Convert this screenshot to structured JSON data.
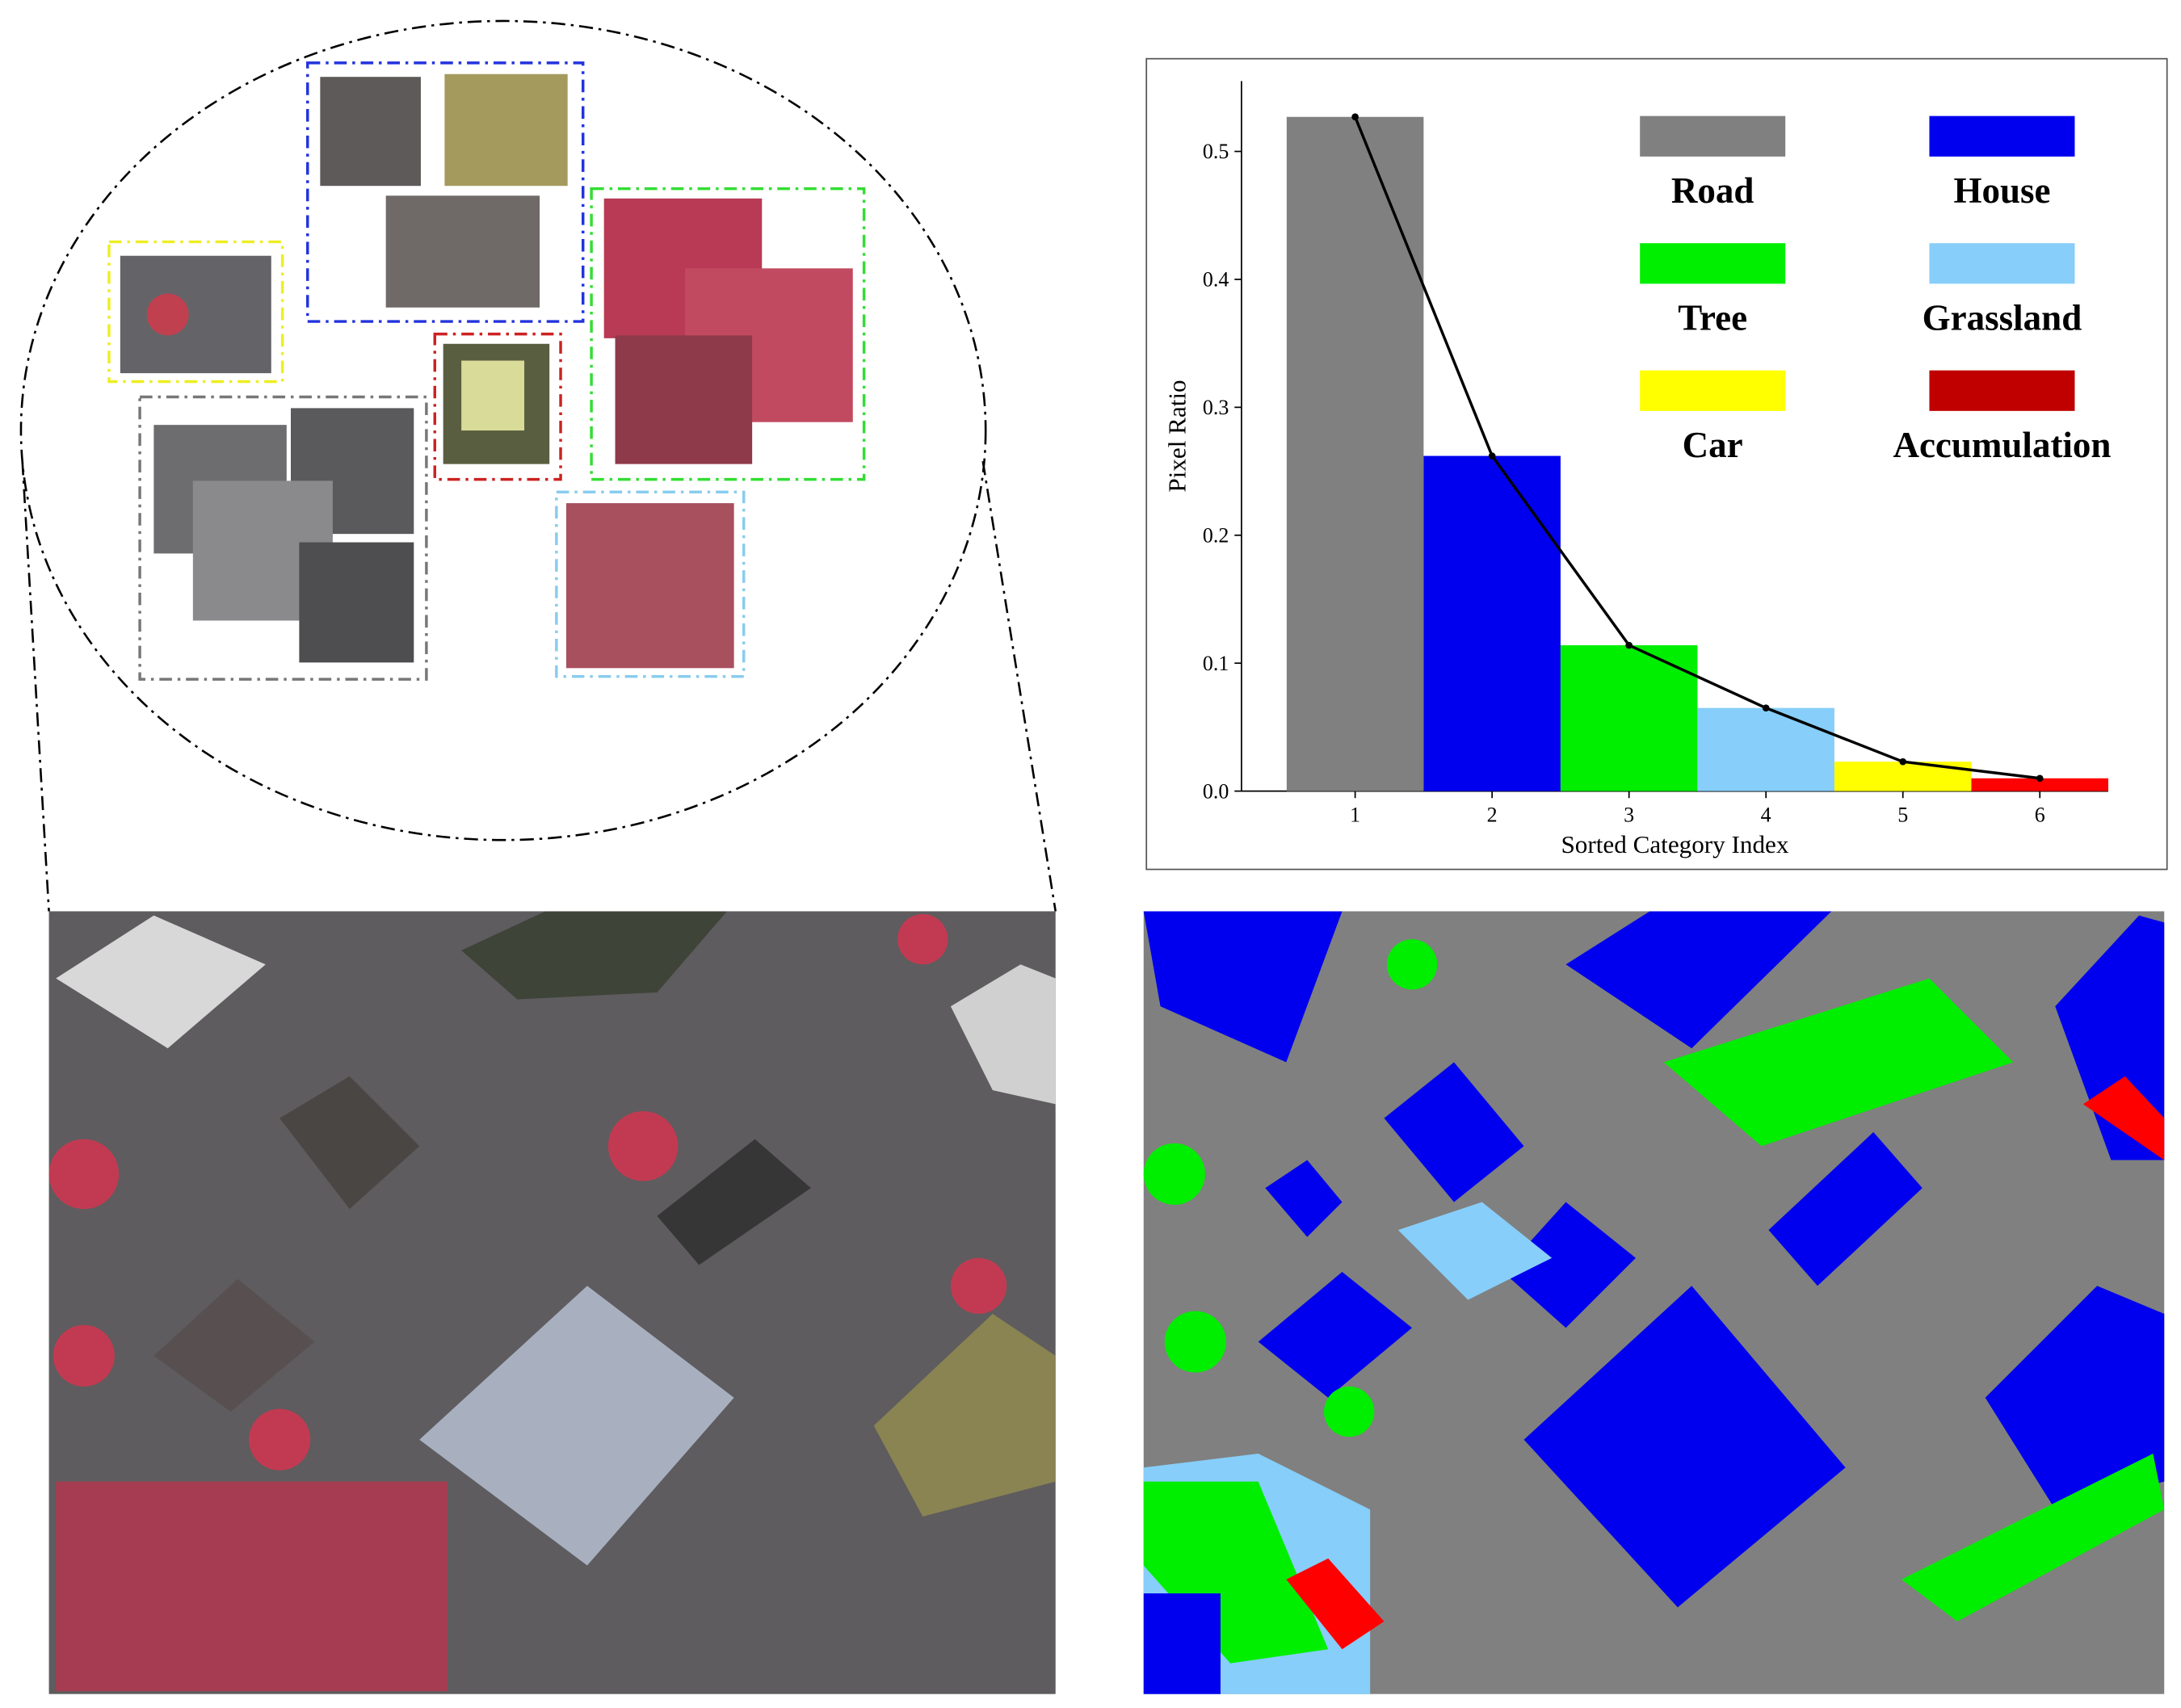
{
  "chart_data": {
    "type": "bar",
    "x": [
      1,
      2,
      3,
      4,
      5,
      6
    ],
    "values": [
      0.527,
      0.262,
      0.114,
      0.065,
      0.023,
      0.01
    ],
    "colors": [
      "#808080",
      "#0000ee",
      "#00ee00",
      "#87cefa",
      "#ffff00",
      "#ff0000"
    ],
    "legend": [
      "Road",
      "House",
      "Tree",
      "Grassland",
      "Car",
      "Accumulation"
    ],
    "legend_colors": [
      "#808080",
      "#0000ee",
      "#00ee00",
      "#87cefa",
      "#ffff00",
      "#c00000"
    ],
    "legend_loc": "upper right",
    "line_color": "#000000",
    "xlabel": "Sorted Category Index",
    "ylabel": "Pixel Ratio",
    "xlim": [
      0.17,
      6.5
    ],
    "ylim": [
      0,
      0.555
    ],
    "xticks": [
      1,
      2,
      3,
      4,
      5,
      6
    ],
    "yticks": [
      {
        "value": 0,
        "label": "0.0"
      },
      0.1,
      0.2,
      0.3,
      0.4,
      0.5
    ]
  }
}
